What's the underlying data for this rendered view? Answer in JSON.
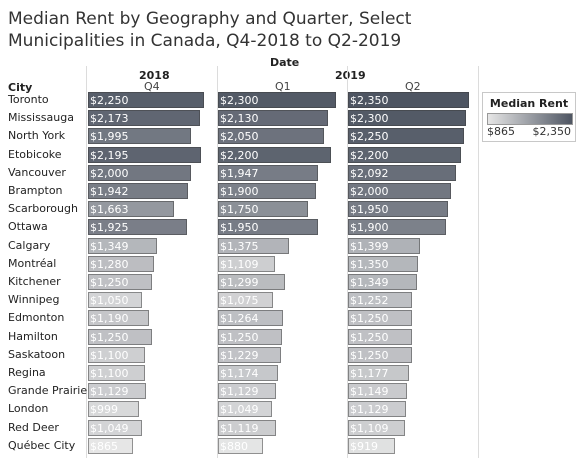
{
  "title": "Median Rent by Geography and Quarter, Select Municipalities in Canada, Q4-2018 to Q2-2019",
  "header": {
    "date_label": "Date",
    "city_label": "City",
    "years": [
      "2018",
      "2019"
    ],
    "quarters": [
      "Q4",
      "Q1",
      "Q2"
    ]
  },
  "legend": {
    "title": "Median Rent",
    "min_label": "$865",
    "max_label": "$2,350",
    "min_color": "#e6e6e6",
    "max_color": "#4e5562"
  },
  "chart_data": {
    "type": "bar",
    "title": "Median Rent by Geography and Quarter, Select Municipalities in Canada, Q4-2018 to Q2-2019",
    "categories": [
      "Toronto",
      "Mississauga",
      "North York",
      "Etobicoke",
      "Vancouver",
      "Brampton",
      "Scarborough",
      "Ottawa",
      "Calgary",
      "Montréal",
      "Kitchener",
      "Winnipeg",
      "Edmonton",
      "Hamilton",
      "Saskatoon",
      "Regina",
      "Grande Prairie",
      "London",
      "Red Deer",
      "Québec City"
    ],
    "series": [
      {
        "name": "2018 Q4",
        "values": [
          2250,
          2173,
          1995,
          2195,
          2000,
          1942,
          1663,
          1925,
          1349,
          1280,
          1250,
          1050,
          1190,
          1250,
          1100,
          1100,
          1129,
          999,
          1049,
          865
        ],
        "labels": [
          "$2,250",
          "$2,173",
          "$1,995",
          "$2,195",
          "$2,000",
          "$1,942",
          "$1,663",
          "$1,925",
          "$1,349",
          "$1,280",
          "$1,250",
          "$1,050",
          "$1,190",
          "$1,250",
          "$1,100",
          "$1,100",
          "$1,129",
          "$999",
          "$1,049",
          "$865"
        ]
      },
      {
        "name": "2019 Q1",
        "values": [
          2300,
          2130,
          2050,
          2200,
          1947,
          1900,
          1750,
          1950,
          1375,
          1109,
          1299,
          1075,
          1264,
          1250,
          1229,
          1174,
          1129,
          1049,
          1119,
          880
        ],
        "labels": [
          "$2,300",
          "$2,130",
          "$2,050",
          "$2,200",
          "$1,947",
          "$1,900",
          "$1,750",
          "$1,950",
          "$1,375",
          "$1,109",
          "$1,299",
          "$1,075",
          "$1,264",
          "$1,250",
          "$1,229",
          "$1,174",
          "$1,129",
          "$1,049",
          "$1,119",
          "$880"
        ]
      },
      {
        "name": "2019 Q2",
        "values": [
          2350,
          2300,
          2250,
          2200,
          2092,
          2000,
          1950,
          1900,
          1399,
          1350,
          1349,
          1252,
          1250,
          1250,
          1250,
          1177,
          1149,
          1129,
          1109,
          919
        ],
        "labels": [
          "$2,350",
          "$2,300",
          "$2,250",
          "$2,200",
          "$2,092",
          "$2,000",
          "$1,950",
          "$1,900",
          "$1,399",
          "$1,350",
          "$1,349",
          "$1,252",
          "$1,250",
          "$1,250",
          "$1,250",
          "$1,177",
          "$1,149",
          "$1,129",
          "$1,109",
          "$919"
        ]
      }
    ],
    "xlim": [
      0,
      2350
    ],
    "color_range": [
      865,
      2350
    ],
    "xlabel": "Date",
    "ylabel": "City",
    "grid": false,
    "legend_position": "top-right"
  }
}
